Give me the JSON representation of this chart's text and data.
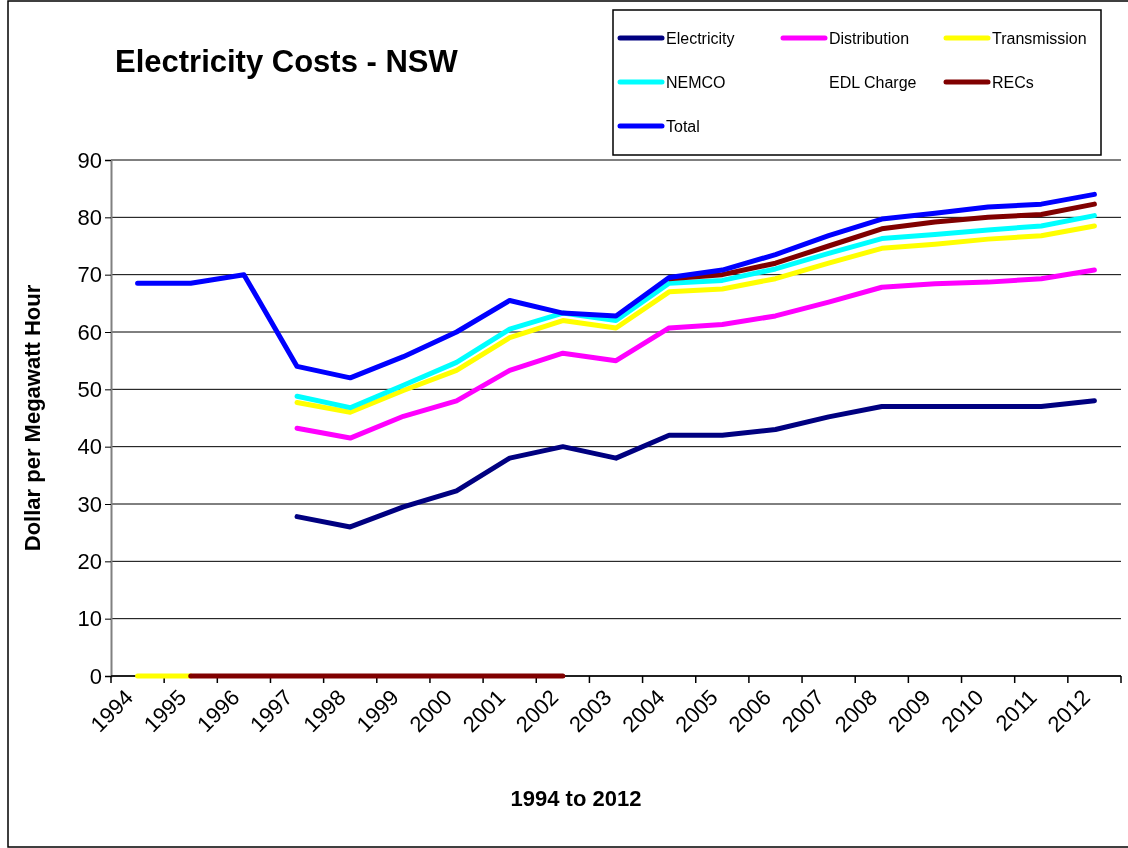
{
  "chart_data": {
    "type": "line",
    "title": "Electricity Costs - NSW",
    "xlabel": "1994 to 2012",
    "ylabel": "Dollar per Megawatt Hour",
    "categories": [
      "1994",
      "1995",
      "1996",
      "1997",
      "1998",
      "1999",
      "2000",
      "2001",
      "2002",
      "2003",
      "2004",
      "2005",
      "2006",
      "2007",
      "2008",
      "2009",
      "2010",
      "2011",
      "2012"
    ],
    "ylim": [
      0,
      90
    ],
    "yticks": [
      0,
      10,
      20,
      30,
      40,
      50,
      60,
      70,
      80,
      90
    ],
    "grid": "y",
    "legend": "top right",
    "marker": "none",
    "line_style": "solid",
    "series": [
      {
        "name": "Electricity",
        "color": "#000080",
        "values": [
          null,
          null,
          null,
          27.8,
          26,
          29.5,
          32.3,
          38,
          40,
          38,
          42,
          42,
          43,
          45.2,
          47,
          47,
          47,
          47,
          48
        ]
      },
      {
        "name": "Distribution",
        "color": "#ff00ff",
        "values": [
          null,
          null,
          null,
          43.2,
          41.5,
          45.3,
          48,
          53.3,
          56.3,
          55,
          60.7,
          61.3,
          62.8,
          65.2,
          67.8,
          68.4,
          68.7,
          69.3,
          70.8
        ]
      },
      {
        "name": "Transmission",
        "color": "#ffff00",
        "values": [
          0,
          0,
          null,
          47.7,
          46,
          49.8,
          53.3,
          59,
          62,
          60.7,
          67,
          67.5,
          69.3,
          72,
          74.6,
          75.3,
          76.2,
          76.8,
          78.5
        ]
      },
      {
        "name": "NEMCO",
        "color": "#00ffff",
        "values": [
          null,
          null,
          null,
          48.8,
          46.8,
          50.7,
          54.7,
          60.5,
          63.3,
          62,
          68.5,
          69,
          71,
          73.7,
          76.3,
          77,
          77.8,
          78.5,
          80.3
        ]
      },
      {
        "name": "EDL Charge",
        "values": [
          null,
          null,
          null,
          null,
          null,
          null,
          null,
          null,
          null,
          null,
          null,
          null,
          null,
          null,
          null,
          null,
          null,
          null,
          null
        ]
      },
      {
        "name": "RECs",
        "color": "#800000",
        "values": [
          null,
          0,
          0,
          0,
          0,
          0,
          0,
          0,
          0,
          null,
          69.3,
          70,
          72,
          75,
          78,
          79.2,
          80,
          80.5,
          82.3
        ]
      },
      {
        "name": "Total",
        "color": "#0000ff",
        "values": [
          68.5,
          68.5,
          70,
          54,
          52,
          55.7,
          60,
          65.5,
          63.3,
          62.8,
          69.5,
          70.8,
          73.5,
          76.8,
          79.7,
          80.7,
          81.8,
          82.3,
          84
        ]
      }
    ]
  }
}
